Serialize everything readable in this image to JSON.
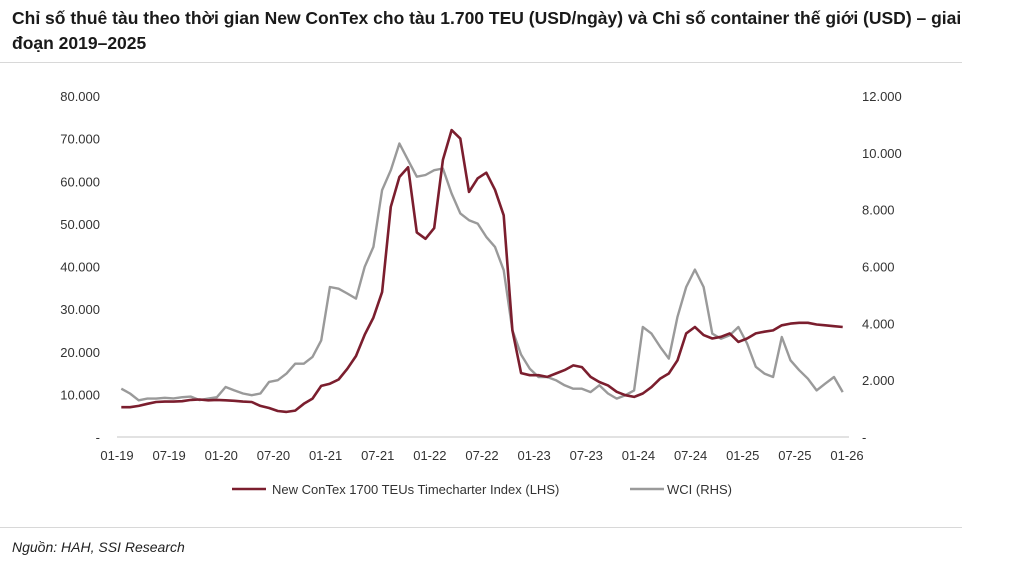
{
  "title": "Chỉ số thuê tàu theo thời gian New ConTex cho tàu 1.700 TEU (USD/ngày) và Chỉ số container thế giới (USD) – giai đoạn 2019–2025",
  "source": "Nguồn: HAH, SSI Research",
  "chart_data": {
    "type": "line",
    "title": "Chỉ số thuê tàu theo thời gian New ConTex cho tàu 1.700 TEU (USD/ngày) và Chỉ số container thế giới (USD) – giai đoạn 2019–2025",
    "x_tick_labels": [
      "01-19",
      "07-19",
      "01-20",
      "07-20",
      "01-21",
      "07-21",
      "01-22",
      "07-22",
      "01-23",
      "07-23",
      "01-24",
      "07-24",
      "01-25",
      "07-25",
      "01-26"
    ],
    "y_left": {
      "range": [
        0,
        80000
      ],
      "tick_labels": [
        "-",
        "10.000",
        "20.000",
        "30.000",
        "40.000",
        "50.000",
        "60.000",
        "70.000",
        "80.000"
      ]
    },
    "y_right": {
      "range": [
        0,
        12000
      ],
      "tick_labels": [
        "-",
        "2.000",
        "4.000",
        "6.000",
        "8.000",
        "10.000",
        "12.000"
      ]
    },
    "x_start": "01-2019",
    "x_step": "monthly",
    "legend_position": "bottom",
    "series": [
      {
        "name": "New ConTex 1700 TEUs Timecharter Index (LHS)",
        "axis": "left",
        "color": "#7b1e2e",
        "values": [
          7000,
          7000,
          7300,
          7800,
          8200,
          8300,
          8300,
          8400,
          8700,
          8800,
          8600,
          8700,
          8600,
          8500,
          8300,
          8200,
          7300,
          6800,
          6100,
          5900,
          6200,
          7800,
          9000,
          12000,
          12500,
          13500,
          16000,
          19000,
          24000,
          28000,
          34000,
          54000,
          61000,
          63300,
          48000,
          46500,
          49000,
          65000,
          72000,
          70000,
          57500,
          60700,
          62000,
          58000,
          52000,
          25000,
          15000,
          14500,
          14500,
          14100,
          14900,
          15700,
          16800,
          16400,
          14100,
          12900,
          12100,
          10600,
          9800,
          9400,
          10200,
          11700,
          13700,
          14900,
          18000,
          24300,
          25800,
          23900,
          23100,
          23500,
          24300,
          22300,
          23100,
          24300,
          24700,
          25000,
          26200,
          26600,
          26800,
          26800,
          26400,
          26200,
          26000,
          25800
        ]
      },
      {
        "name": "WCI (RHS)",
        "axis": "right",
        "color": "#9a9a9a",
        "values": [
          1700,
          1530,
          1290,
          1350,
          1350,
          1380,
          1360,
          1400,
          1420,
          1300,
          1350,
          1400,
          1760,
          1640,
          1530,
          1470,
          1530,
          1940,
          2000,
          2230,
          2580,
          2580,
          2820,
          3400,
          5280,
          5220,
          5050,
          4870,
          5990,
          6690,
          8690,
          9390,
          10330,
          9740,
          9160,
          9220,
          9390,
          9450,
          8570,
          7870,
          7630,
          7510,
          7040,
          6690,
          5870,
          3760,
          2900,
          2400,
          2110,
          2110,
          2000,
          1820,
          1700,
          1700,
          1580,
          1820,
          1530,
          1350,
          1470,
          1640,
          3870,
          3640,
          3170,
          2760,
          4230,
          5280,
          5890,
          5280,
          3640,
          3460,
          3580,
          3870,
          3290,
          2470,
          2230,
          2110,
          3520,
          2700,
          2350,
          2050,
          1640,
          1880,
          2110,
          1580
        ]
      }
    ]
  }
}
